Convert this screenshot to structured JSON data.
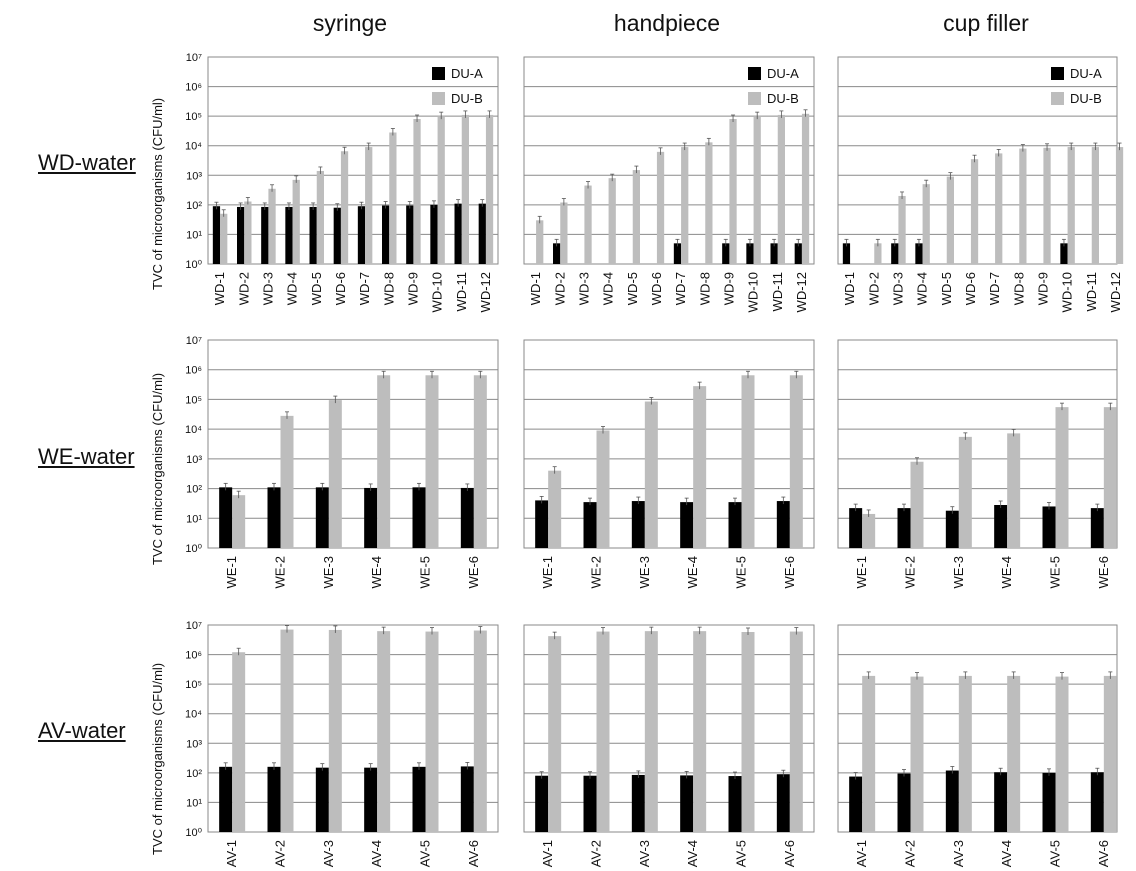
{
  "columns": [
    "syringe",
    "handpiece",
    "cup filler"
  ],
  "rows": [
    "WD-water",
    "WE-water",
    "AV-water"
  ],
  "y_axis_label": "TVC of microorganisms (CFU/ml)",
  "y_tick_labels": [
    "10⁰",
    "10¹",
    "10²",
    "10³",
    "10⁴",
    "10⁵",
    "10⁶",
    "10⁷"
  ],
  "legend": [
    "DU-A",
    "DU-B"
  ],
  "colors": {
    "DU-A": "#000000",
    "DU-B": "#bdbdbd",
    "grid": "#8a8a8a",
    "frame": "#8a8a8a"
  },
  "chart_data": [
    {
      "type": "bar",
      "row": "WD-water",
      "column": "syringe",
      "log_y": true,
      "ylim": [
        1,
        10000000
      ],
      "grid": true,
      "legend": "top-right",
      "categories": [
        "WD-1",
        "WD-2",
        "WD-3",
        "WD-4",
        "WD-5",
        "WD-6",
        "WD-7",
        "WD-8",
        "WD-9",
        "WD-10",
        "WD-11",
        "WD-12"
      ],
      "series": [
        {
          "name": "DU-A",
          "values": [
            90,
            85,
            85,
            85,
            85,
            80,
            90,
            95,
            95,
            100,
            110,
            110
          ]
        },
        {
          "name": "DU-B",
          "values": [
            50,
            130,
            350,
            700,
            1400,
            6500,
            9000,
            28000,
            80000,
            100000,
            110000,
            110000
          ]
        }
      ]
    },
    {
      "type": "bar",
      "row": "WD-water",
      "column": "handpiece",
      "log_y": true,
      "ylim": [
        1,
        10000000
      ],
      "grid": true,
      "legend": "top-right",
      "categories": [
        "WD-1",
        "WD-2",
        "WD-3",
        "WD-4",
        "WD-5",
        "WD-6",
        "WD-7",
        "WD-8",
        "WD-9",
        "WD-10",
        "WD-11",
        "WD-12"
      ],
      "series": [
        {
          "name": "DU-A",
          "values": [
            0,
            5,
            0,
            0,
            0,
            0,
            5,
            0,
            5,
            5,
            5,
            5
          ]
        },
        {
          "name": "DU-B",
          "values": [
            30,
            120,
            450,
            800,
            1500,
            6200,
            9000,
            13000,
            80000,
            100000,
            110000,
            120000
          ]
        }
      ]
    },
    {
      "type": "bar",
      "row": "WD-water",
      "column": "cup filler",
      "log_y": true,
      "ylim": [
        1,
        10000000
      ],
      "grid": true,
      "legend": "top-right",
      "categories": [
        "WD-1",
        "WD-2",
        "WD-3",
        "WD-4",
        "WD-5",
        "WD-6",
        "WD-7",
        "WD-8",
        "WD-9",
        "WD-10",
        "WD-11",
        "WD-12"
      ],
      "series": [
        {
          "name": "DU-A",
          "values": [
            5,
            0,
            5,
            5,
            0,
            0,
            0,
            0,
            0,
            5,
            0,
            0
          ]
        },
        {
          "name": "DU-B",
          "values": [
            0,
            5,
            200,
            500,
            900,
            3500,
            5500,
            8000,
            8500,
            9000,
            9000,
            9000
          ]
        }
      ]
    },
    {
      "type": "bar",
      "row": "WE-water",
      "column": "syringe",
      "log_y": true,
      "ylim": [
        1,
        10000000
      ],
      "grid": true,
      "categories": [
        "WE-1",
        "WE-2",
        "WE-3",
        "WE-4",
        "WE-5",
        "WE-6"
      ],
      "series": [
        {
          "name": "DU-A",
          "values": [
            110,
            110,
            110,
            105,
            110,
            105
          ]
        },
        {
          "name": "DU-B",
          "values": [
            60,
            28000,
            95000,
            650000,
            650000,
            650000
          ]
        }
      ]
    },
    {
      "type": "bar",
      "row": "WE-water",
      "column": "handpiece",
      "log_y": true,
      "ylim": [
        1,
        10000000
      ],
      "grid": true,
      "categories": [
        "WE-1",
        "WE-2",
        "WE-3",
        "WE-4",
        "WE-5",
        "WE-6"
      ],
      "series": [
        {
          "name": "DU-A",
          "values": [
            40,
            35,
            38,
            35,
            35,
            38
          ]
        },
        {
          "name": "DU-B",
          "values": [
            400,
            9000,
            85000,
            280000,
            650000,
            650000
          ]
        }
      ]
    },
    {
      "type": "bar",
      "row": "WE-water",
      "column": "cup filler",
      "log_y": true,
      "ylim": [
        1,
        10000000
      ],
      "grid": true,
      "categories": [
        "WE-1",
        "WE-2",
        "WE-3",
        "WE-4",
        "WE-5",
        "WE-6"
      ],
      "series": [
        {
          "name": "DU-A",
          "values": [
            22,
            22,
            18,
            28,
            25,
            22
          ]
        },
        {
          "name": "DU-B",
          "values": [
            14,
            800,
            5500,
            7200,
            55000,
            55000
          ]
        }
      ]
    },
    {
      "type": "bar",
      "row": "AV-water",
      "column": "syringe",
      "log_y": true,
      "ylim": [
        1,
        10000000
      ],
      "grid": true,
      "categories": [
        "AV-1",
        "AV-2",
        "AV-3",
        "AV-4",
        "AV-5",
        "AV-6"
      ],
      "series": [
        {
          "name": "DU-A",
          "values": [
            160,
            160,
            150,
            150,
            160,
            165
          ]
        },
        {
          "name": "DU-B",
          "values": [
            1200000,
            7000000,
            6800000,
            6200000,
            6000000,
            6500000
          ]
        }
      ]
    },
    {
      "type": "bar",
      "row": "AV-water",
      "column": "handpiece",
      "log_y": true,
      "ylim": [
        1,
        10000000
      ],
      "grid": true,
      "categories": [
        "AV-1",
        "AV-2",
        "AV-3",
        "AV-4",
        "AV-5",
        "AV-6"
      ],
      "series": [
        {
          "name": "DU-A",
          "values": [
            80,
            80,
            85,
            82,
            78,
            90
          ]
        },
        {
          "name": "DU-B",
          "values": [
            4200000,
            6000000,
            6200000,
            6200000,
            5800000,
            6000000
          ]
        }
      ]
    },
    {
      "type": "bar",
      "row": "AV-water",
      "column": "cup filler",
      "log_y": true,
      "ylim": [
        1,
        10000000
      ],
      "grid": true,
      "categories": [
        "AV-1",
        "AV-2",
        "AV-3",
        "AV-4",
        "AV-5",
        "AV-6"
      ],
      "series": [
        {
          "name": "DU-A",
          "values": [
            75,
            95,
            120,
            105,
            100,
            105
          ]
        },
        {
          "name": "DU-B",
          "values": [
            190000,
            180000,
            190000,
            190000,
            180000,
            190000
          ]
        }
      ]
    }
  ]
}
